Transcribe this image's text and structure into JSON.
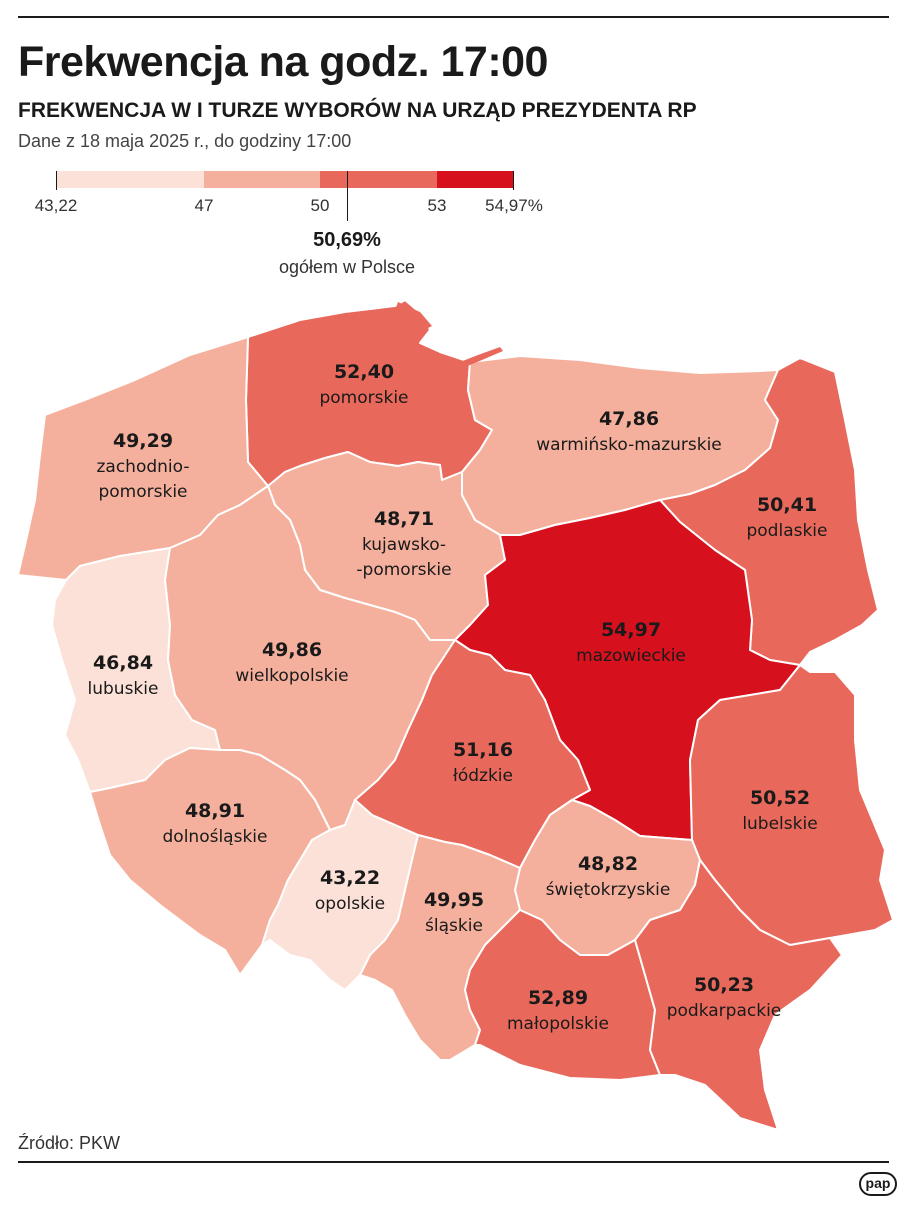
{
  "title": "Frekwencja na godz. 17:00",
  "subtitle": "FREKWENCJA W I TURZE WYBORÓW NA URZĄD PREZYDENTA RP",
  "note": "Dane z 18 maja 2025 r., do godziny 17:00",
  "legend": {
    "labels": [
      "43,22",
      "47",
      "50",
      "53",
      "54,97%"
    ],
    "colors": [
      "#fbe1d8",
      "#f5b09d",
      "#e8695b",
      "#d7101e"
    ],
    "average_value": "50,69%",
    "average_label": "ogółem w Polsce"
  },
  "regions": {
    "pomorskie": {
      "value": "52,40",
      "name": "pomorskie",
      "color": "#e8695b"
    },
    "zachodniopomorskie": {
      "value": "49,29",
      "name_line1": "zachodnio-",
      "name_line2": "pomorskie",
      "color": "#f5b09d"
    },
    "warminsko_mazurskie": {
      "value": "47,86",
      "name": "warmińsko-mazurskie",
      "color": "#f5b09d"
    },
    "podlaskie": {
      "value": "50,41",
      "name": "podlaskie",
      "color": "#e8695b"
    },
    "kujawsko_pomorskie": {
      "value": "48,71",
      "name_line1": "kujawsko-",
      "name_line2": "-pomorskie",
      "color": "#f5b09d"
    },
    "mazowieckie": {
      "value": "54,97",
      "name": "mazowieckie",
      "color": "#d7101e"
    },
    "lubuskie": {
      "value": "46,84",
      "name": "lubuskie",
      "color": "#fbe1d8"
    },
    "wielkopolskie": {
      "value": "49,86",
      "name": "wielkopolskie",
      "color": "#f5b09d"
    },
    "lodzkie": {
      "value": "51,16",
      "name": "łódzkie",
      "color": "#e8695b"
    },
    "lubelskie": {
      "value": "50,52",
      "name": "lubelskie",
      "color": "#e8695b"
    },
    "dolnoslaskie": {
      "value": "48,91",
      "name": "dolnośląskie",
      "color": "#f5b09d"
    },
    "swietokrzyskie": {
      "value": "48,82",
      "name": "świętokrzyskie",
      "color": "#f5b09d"
    },
    "opolskie": {
      "value": "43,22",
      "name": "opolskie",
      "color": "#fbe1d8"
    },
    "slaskie": {
      "value": "49,95",
      "name": "śląskie",
      "color": "#f5b09d"
    },
    "malopolskie": {
      "value": "52,89",
      "name": "małopolskie",
      "color": "#e8695b"
    },
    "podkarpackie": {
      "value": "50,23",
      "name": "podkarpackie",
      "color": "#e8695b"
    }
  },
  "source": "Źródło: PKW",
  "logo": "pap"
}
